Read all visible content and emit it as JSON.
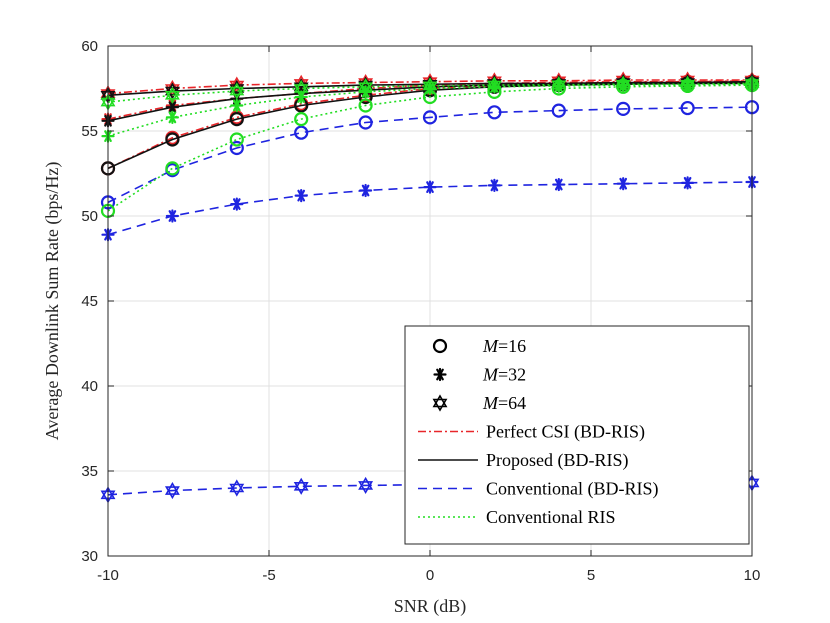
{
  "chart_data": {
    "type": "line",
    "xlabel": "SNR (dB)",
    "ylabel": "Average Downlink Sum Rate (bps/Hz)",
    "xlim": [
      -10,
      10
    ],
    "ylim": [
      30,
      60
    ],
    "xticks": [
      -10,
      -5,
      0,
      5,
      10
    ],
    "yticks": [
      30,
      35,
      40,
      45,
      50,
      55,
      60
    ],
    "x_tick_labels": [
      "-10",
      "-5",
      "0",
      "5",
      "10"
    ],
    "y_tick_labels": [
      "30",
      "35",
      "40",
      "45",
      "50",
      "55",
      "60"
    ],
    "grid": true,
    "legend_position": "bottom-right",
    "x": [
      -10,
      -8,
      -6,
      -4,
      -2,
      0,
      2,
      4,
      6,
      8,
      10
    ],
    "series": [
      {
        "method": "perfect",
        "marker": "circle",
        "color": "#e8262a",
        "dash": "8,3,2,3",
        "values": [
          52.8,
          54.6,
          55.8,
          56.6,
          57.1,
          57.5,
          57.7,
          57.8,
          57.85,
          57.9,
          57.9
        ]
      },
      {
        "method": "perfect",
        "marker": "asterisk",
        "color": "#e8262a",
        "dash": "8,3,2,3",
        "values": [
          55.7,
          56.5,
          56.9,
          57.2,
          57.5,
          57.7,
          57.8,
          57.85,
          57.9,
          57.9,
          57.95
        ]
      },
      {
        "method": "perfect",
        "marker": "hexagram",
        "color": "#e8262a",
        "dash": "8,3,2,3",
        "values": [
          57.2,
          57.5,
          57.7,
          57.8,
          57.85,
          57.9,
          57.95,
          57.95,
          58.0,
          58.0,
          58.0
        ]
      },
      {
        "method": "proposed",
        "marker": "circle",
        "color": "#111111",
        "dash": "",
        "values": [
          52.8,
          54.5,
          55.7,
          56.5,
          57.0,
          57.4,
          57.6,
          57.7,
          57.75,
          57.8,
          57.8
        ]
      },
      {
        "method": "proposed",
        "marker": "asterisk",
        "color": "#111111",
        "dash": "",
        "values": [
          55.6,
          56.4,
          56.9,
          57.2,
          57.4,
          57.6,
          57.7,
          57.75,
          57.8,
          57.8,
          57.85
        ]
      },
      {
        "method": "proposed",
        "marker": "hexagram",
        "color": "#111111",
        "dash": "",
        "values": [
          57.1,
          57.35,
          57.5,
          57.6,
          57.7,
          57.75,
          57.8,
          57.8,
          57.85,
          57.85,
          57.9
        ]
      },
      {
        "method": "conv-bd",
        "marker": "circle",
        "color": "#1f24e0",
        "dash": "9,6",
        "values": [
          50.8,
          52.7,
          54.0,
          54.9,
          55.5,
          55.8,
          56.1,
          56.2,
          56.3,
          56.35,
          56.4
        ]
      },
      {
        "method": "conv-bd",
        "marker": "asterisk",
        "color": "#1f24e0",
        "dash": "9,6",
        "values": [
          48.9,
          50.0,
          50.7,
          51.2,
          51.5,
          51.7,
          51.8,
          51.85,
          51.9,
          51.95,
          52.0
        ]
      },
      {
        "method": "conv-bd",
        "marker": "hexagram",
        "color": "#1f24e0",
        "dash": "9,6",
        "values": [
          33.6,
          33.85,
          34.0,
          34.1,
          34.15,
          34.2,
          34.22,
          34.24,
          34.25,
          34.27,
          34.3
        ]
      },
      {
        "method": "conv-ris",
        "marker": "circle",
        "color": "#22dd22",
        "dash": "2,3",
        "values": [
          50.3,
          52.8,
          54.5,
          55.7,
          56.5,
          57.0,
          57.3,
          57.5,
          57.6,
          57.65,
          57.7
        ]
      },
      {
        "method": "conv-ris",
        "marker": "asterisk",
        "color": "#22dd22",
        "dash": "2,3",
        "values": [
          54.7,
          55.8,
          56.5,
          57.0,
          57.3,
          57.5,
          57.6,
          57.65,
          57.7,
          57.7,
          57.75
        ]
      },
      {
        "method": "conv-ris",
        "marker": "hexagram",
        "color": "#22dd22",
        "dash": "2,3",
        "values": [
          56.7,
          57.1,
          57.35,
          57.5,
          57.6,
          57.65,
          57.7,
          57.72,
          57.75,
          57.75,
          57.8
        ]
      }
    ],
    "legend": [
      {
        "kind": "marker",
        "marker": "circle",
        "symbol": "M",
        "label": "=16"
      },
      {
        "kind": "marker",
        "marker": "asterisk",
        "symbol": "M",
        "label": "=32"
      },
      {
        "kind": "marker",
        "marker": "hexagram",
        "symbol": "M",
        "label": "=64"
      },
      {
        "kind": "line",
        "color": "#e8262a",
        "dash": "8,3,2,3",
        "label": "Perfect CSI (BD-RIS)"
      },
      {
        "kind": "line",
        "color": "#111111",
        "dash": "",
        "label": "Proposed (BD-RIS)"
      },
      {
        "kind": "line",
        "color": "#1f24e0",
        "dash": "9,6",
        "label": "Conventional (BD-RIS)"
      },
      {
        "kind": "line",
        "color": "#22dd22",
        "dash": "2,3",
        "label": "Conventional RIS"
      }
    ]
  }
}
